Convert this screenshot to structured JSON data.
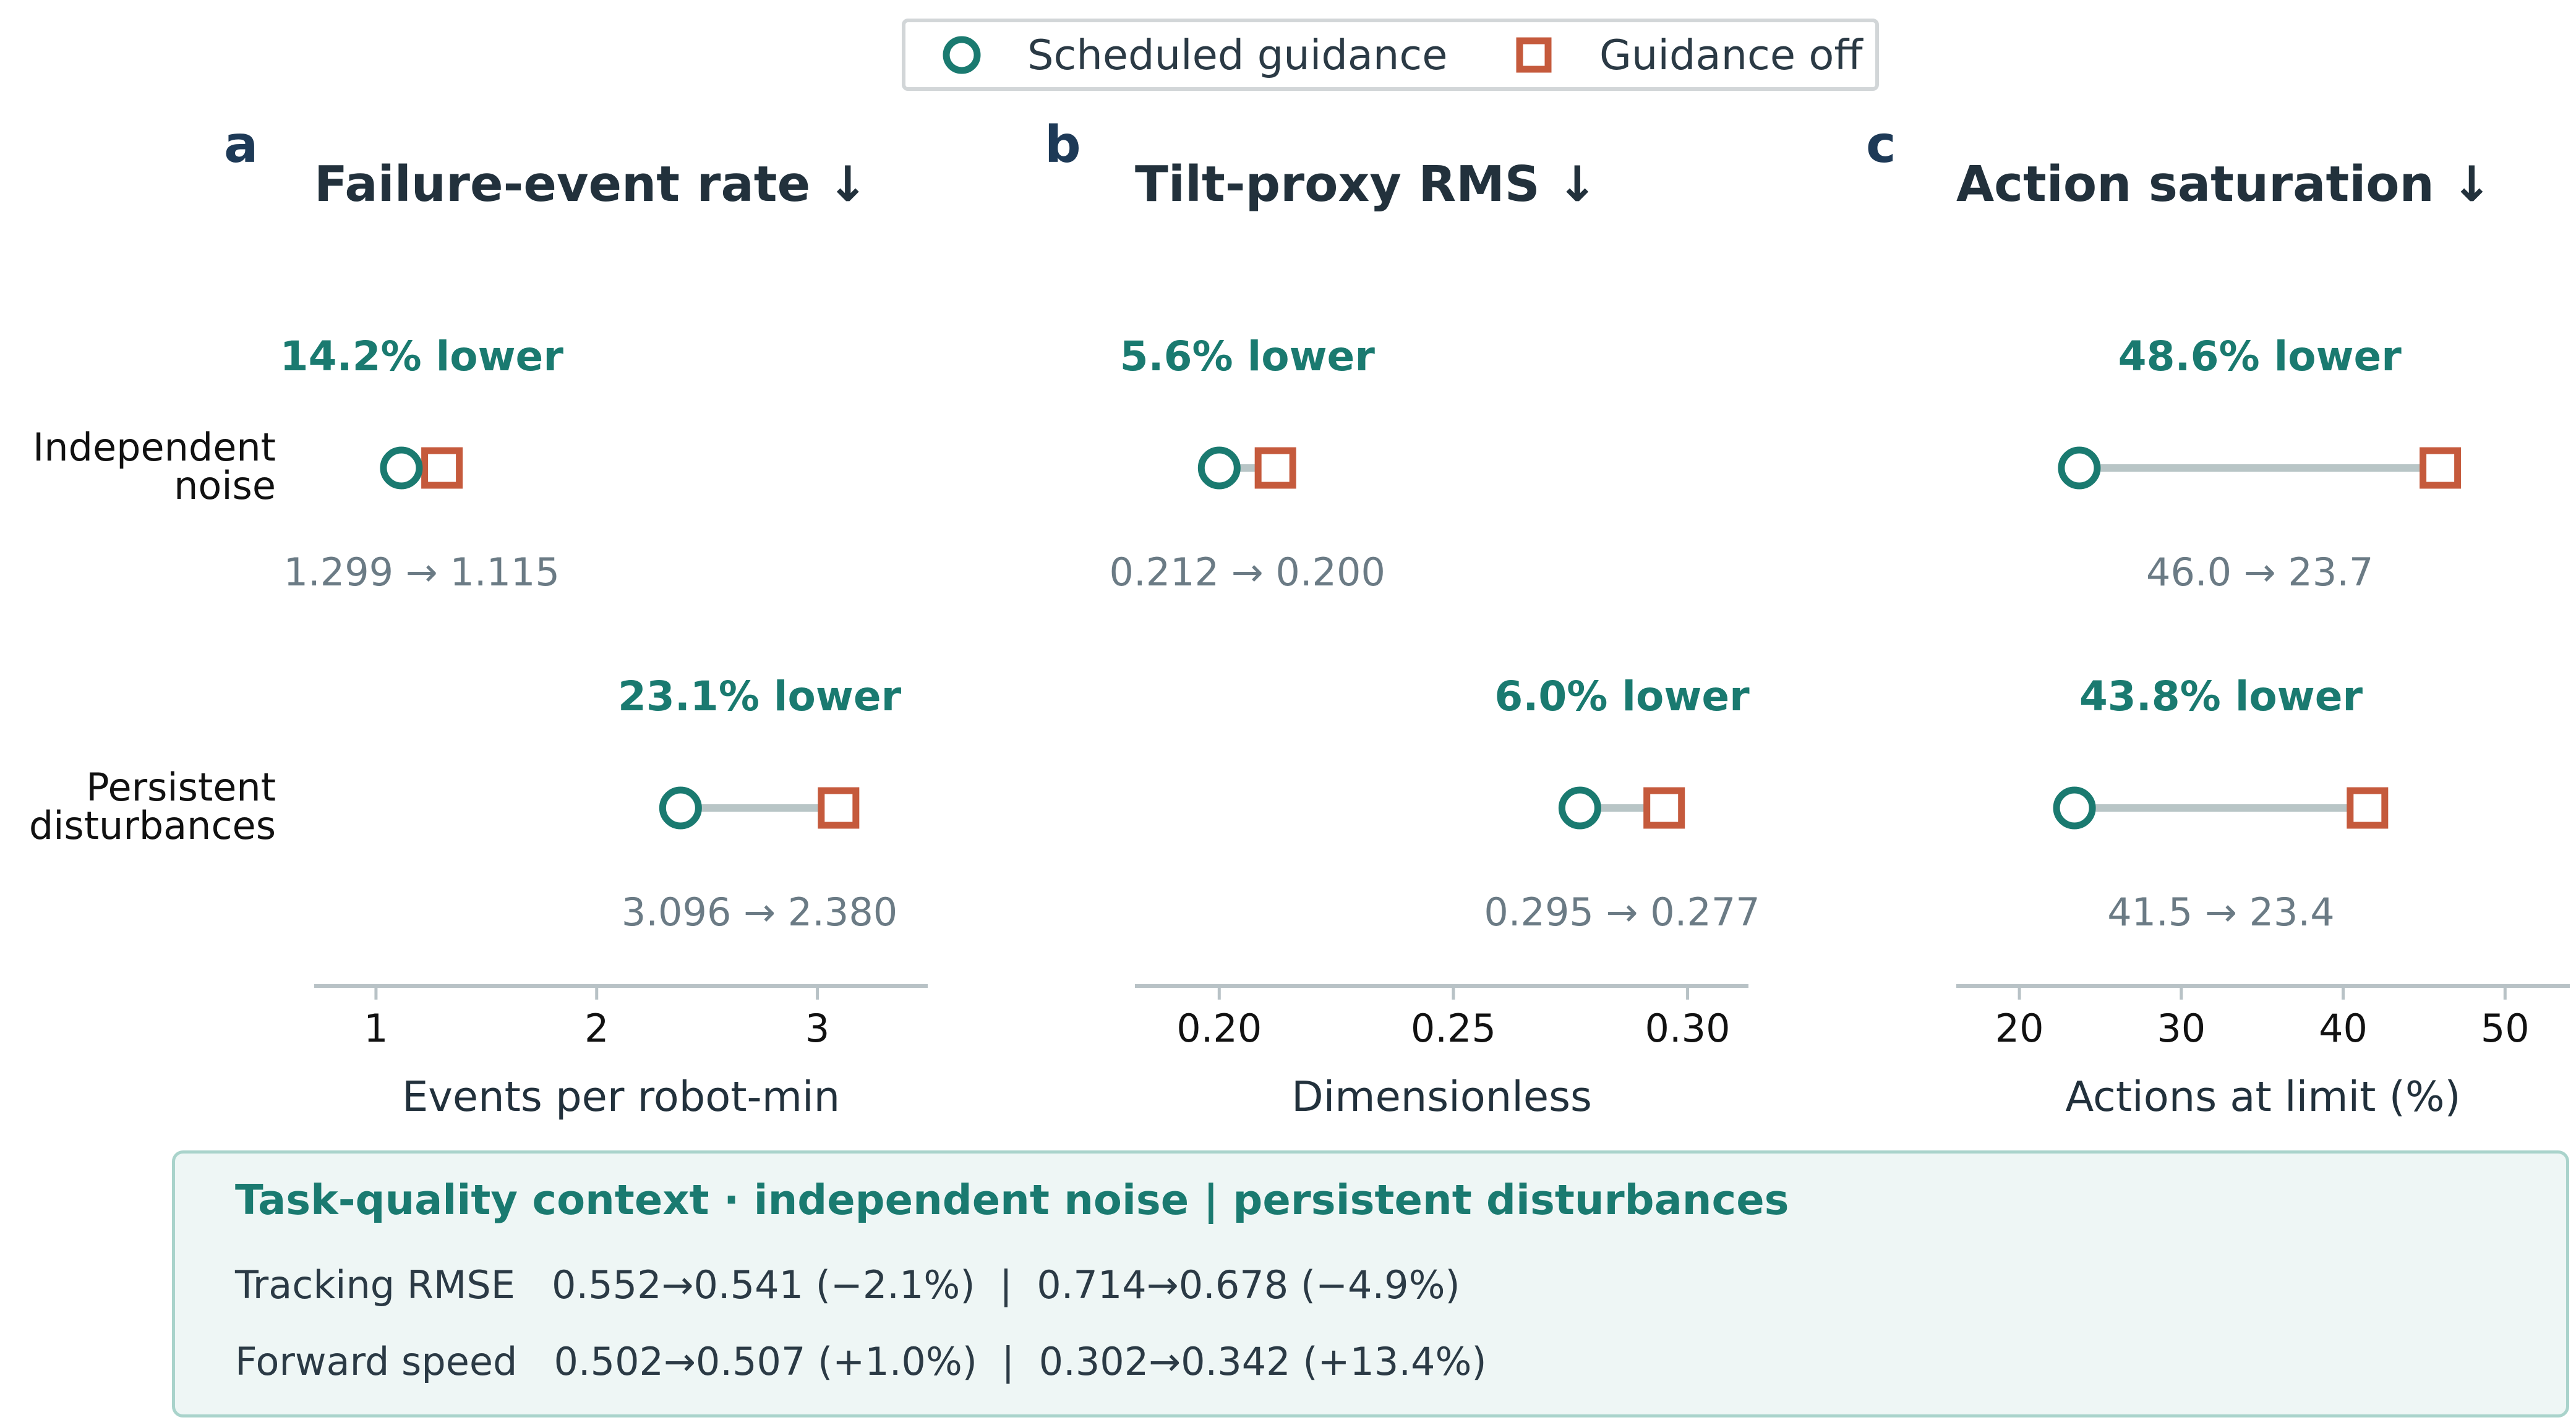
{
  "legend": {
    "guided_label": "Scheduled guidance",
    "off_label": "Guidance off",
    "guided_marker": "circle-marker-icon",
    "off_marker": "square-marker-icon"
  },
  "colors": {
    "guided": "#1a7a70",
    "off": "#c55a3c",
    "connector": "#b8c5c6",
    "panel_letter": "#1e3a57",
    "title": "#22313c",
    "value_text": "#6b7b85",
    "axis": "#b8c2c6"
  },
  "row_labels": [
    [
      "Independent",
      "noise"
    ],
    [
      "Persistent",
      "disturbances"
    ]
  ],
  "chart_data": [
    {
      "type": "dumbbell",
      "panel": "a",
      "title": "Failure-event rate ↓",
      "xlabel": "Events per robot-min",
      "xlim": [
        0.72,
        3.5
      ],
      "ticks": [
        1,
        2,
        3
      ],
      "tick_labels": [
        "1",
        "2",
        "3"
      ],
      "rows": [
        {
          "category": "Independent noise",
          "guided": 1.115,
          "off": 1.299,
          "change_label": "14.2% lower",
          "value_label": "1.299 → 1.115"
        },
        {
          "category": "Persistent disturbances",
          "guided": 2.38,
          "off": 3.096,
          "change_label": "23.1% lower",
          "value_label": "3.096 → 2.380"
        }
      ]
    },
    {
      "type": "dumbbell",
      "panel": "b",
      "title": "Tilt-proxy RMS ↓",
      "xlabel": "Dimensionless",
      "xlim": [
        0.182,
        0.313
      ],
      "ticks": [
        0.2,
        0.25,
        0.3
      ],
      "tick_labels": [
        "0.20",
        "0.25",
        "0.30"
      ],
      "rows": [
        {
          "category": "Independent noise",
          "guided": 0.2,
          "off": 0.212,
          "change_label": "5.6% lower",
          "value_label": "0.212 → 0.200"
        },
        {
          "category": "Persistent disturbances",
          "guided": 0.277,
          "off": 0.295,
          "change_label": "6.0% lower",
          "value_label": "0.295 → 0.277"
        }
      ]
    },
    {
      "type": "dumbbell",
      "panel": "c",
      "title": "Action saturation ↓",
      "xlabel": "Actions at limit (%)",
      "xlim": [
        16.1,
        54.0
      ],
      "ticks": [
        20,
        30,
        40,
        50
      ],
      "tick_labels": [
        "20",
        "30",
        "40",
        "50"
      ],
      "rows": [
        {
          "category": "Independent noise",
          "guided": 23.7,
          "off": 46.0,
          "change_label": "48.6% lower",
          "value_label": "46.0 → 23.7"
        },
        {
          "category": "Persistent disturbances",
          "guided": 23.4,
          "off": 41.5,
          "change_label": "43.8% lower",
          "value_label": "41.5 → 23.4"
        }
      ]
    }
  ],
  "context": {
    "title": "Task-quality context  ·  independent noise | persistent disturbances",
    "lines": [
      "Tracking RMSE   0.552→0.541 (−2.1%)  |  0.714→0.678 (−4.9%)",
      "Forward speed   0.502→0.507 (+1.0%)  |  0.302→0.342 (+13.4%)"
    ]
  }
}
